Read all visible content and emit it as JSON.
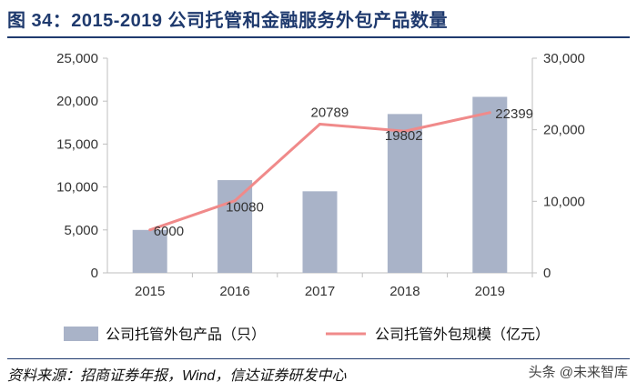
{
  "chart_data": {
    "type": "bar+line",
    "title": "图 34：2015-2019 公司托管和金融服务外包产品数量",
    "categories": [
      "2015",
      "2016",
      "2017",
      "2018",
      "2019"
    ],
    "series": [
      {
        "name": "公司托管外包产品（只）",
        "type": "bar",
        "axis": "left",
        "color": "#a9b3c8",
        "values": [
          5000,
          10800,
          9500,
          18500,
          20500
        ]
      },
      {
        "name": "公司托管外包规模（亿元）",
        "type": "line",
        "axis": "right",
        "color": "#f08a8a",
        "values": [
          6000,
          10080,
          20789,
          19802,
          22399
        ],
        "data_labels": [
          "6000",
          "10080",
          "20789",
          "19802",
          "22399"
        ]
      }
    ],
    "y_left": {
      "ylim": [
        0,
        25000
      ],
      "ticks": [
        "0",
        "5,000",
        "10,000",
        "15,000",
        "20,000",
        "25,000"
      ]
    },
    "y_right": {
      "ylim": [
        0,
        30000
      ],
      "ticks": [
        "0",
        "10,000",
        "20,000",
        "30,000"
      ]
    },
    "grid": false,
    "legend": "bottom"
  },
  "source": "资料来源：招商证券年报，Wind，信达证券研发中心",
  "watermark": "头条 @未来智库"
}
